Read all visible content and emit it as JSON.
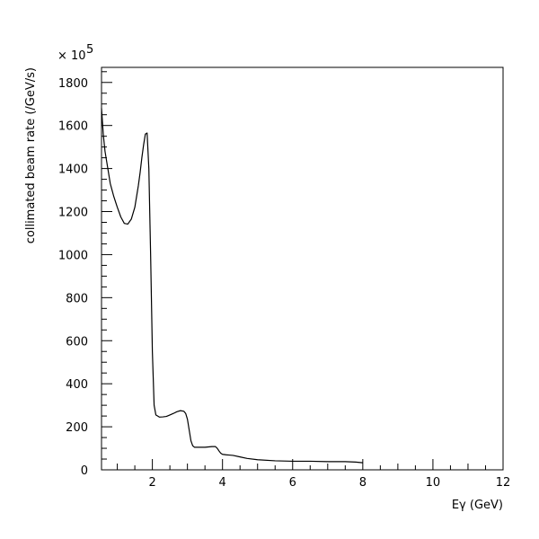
{
  "chart_data": {
    "type": "line",
    "title": "",
    "xlabel": "Eγ (GeV)",
    "ylabel": "collimated beam rate (/GeV/s)",
    "y_multiplier_label": "× 10",
    "y_multiplier_exponent": "5",
    "xlim": [
      0.55,
      12
    ],
    "ylim": [
      0,
      1870
    ],
    "x_ticks": [
      2,
      4,
      6,
      8,
      10,
      12
    ],
    "x_tick_labels": [
      "2",
      "4",
      "6",
      "8",
      "10",
      "12"
    ],
    "y_ticks": [
      0,
      200,
      400,
      600,
      800,
      1000,
      1200,
      1400,
      1600,
      1800
    ],
    "y_tick_labels": [
      "0",
      "200",
      "400",
      "600",
      "800",
      "1000",
      "1200",
      "1400",
      "1600",
      "1800"
    ],
    "grid": false,
    "legend": "none",
    "line_color": "#000000",
    "series": [
      {
        "x": [
          0.55,
          0.6,
          0.65,
          0.7,
          0.75,
          0.8,
          0.85,
          0.9,
          1.0,
          1.1,
          1.2,
          1.3,
          1.4,
          1.5,
          1.6,
          1.65,
          1.7,
          1.75,
          1.8,
          1.85,
          1.9,
          1.95,
          2.0,
          2.05,
          2.1,
          2.2,
          2.3,
          2.4,
          2.5,
          2.6,
          2.7,
          2.8,
          2.9,
          2.95,
          3.0,
          3.05,
          3.1,
          3.15,
          3.2,
          3.3,
          3.5,
          3.7,
          3.8,
          3.85,
          3.9,
          3.95,
          4.0,
          4.1,
          4.3,
          4.5,
          4.7,
          5.0,
          5.5,
          6.0,
          6.5,
          7.0,
          7.5,
          7.8,
          8.0
        ],
        "y": [
          1680,
          1560,
          1480,
          1430,
          1380,
          1330,
          1300,
          1270,
          1220,
          1175,
          1145,
          1142,
          1165,
          1220,
          1320,
          1380,
          1450,
          1510,
          1560,
          1565,
          1400,
          1000,
          550,
          300,
          255,
          245,
          246,
          248,
          255,
          262,
          270,
          275,
          272,
          262,
          235,
          185,
          135,
          112,
          105,
          105,
          105,
          108,
          108,
          100,
          88,
          77,
          72,
          70,
          67,
          60,
          53,
          47,
          42,
          40,
          40,
          38,
          38,
          36,
          33
        ]
      }
    ]
  }
}
